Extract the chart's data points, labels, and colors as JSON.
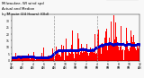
{
  "title_line1": "Milwaukee, WI wind spd",
  "title_line2": "Actual and Median",
  "title_line3": "by Minute (24 Hours) (Old)",
  "legend_actual": "Actual",
  "legend_median": "Median",
  "background_color": "#f8f8f8",
  "bar_color": "#ff0000",
  "median_color": "#0000cc",
  "n_points": 1440,
  "ylim": [
    0,
    35
  ],
  "yticks": [
    0,
    5,
    10,
    15,
    20,
    25,
    30,
    35
  ],
  "vline_color": "#999999",
  "vline_positions": [
    480,
    960
  ],
  "title_fontsize": 2.8,
  "tick_fontsize": 2.2,
  "legend_fontsize": 2.5
}
